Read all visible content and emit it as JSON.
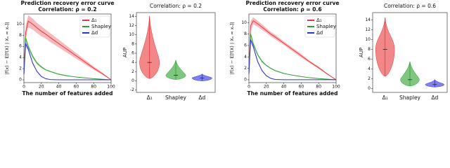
{
  "chart_data": [
    {
      "type": "line",
      "title": "Prediction recovery error curve",
      "subtitle": "Correlation: ρ = 0.2",
      "x_label": "The number of features added",
      "y_label": "|f(x) − E[f(X) | Xₛ = xₛ]|",
      "x": [
        0,
        2,
        5,
        10,
        15,
        20,
        25,
        30,
        40,
        50,
        60,
        70,
        80,
        90,
        100
      ],
      "series": [
        {
          "name": "Δ₁",
          "color": "#e8373b",
          "values": [
            1,
            8.5,
            10.5,
            10,
            9.3,
            8.7,
            8.2,
            7.6,
            6.5,
            5.4,
            4.3,
            3.2,
            2.1,
            1.1,
            0
          ],
          "errors": [
            0.3,
            1.2,
            1.1,
            1,
            0.9,
            0.9,
            0.8,
            0.8,
            0.7,
            0.6,
            0.5,
            0.4,
            0.3,
            0.2,
            0
          ]
        },
        {
          "name": "Shapley",
          "color": "#2ca02c",
          "values": [
            1,
            7.5,
            6,
            4.2,
            3,
            2.3,
            1.8,
            1.5,
            1,
            0.7,
            0.5,
            0.35,
            0.2,
            0.1,
            0
          ],
          "errors": [
            0.2,
            0.4,
            0.3,
            0.3,
            0.2,
            0.2,
            0.1,
            0.1,
            0.1,
            0.1,
            0,
            0,
            0,
            0,
            0
          ]
        },
        {
          "name": "Δd",
          "color": "#2d2de0",
          "values": [
            1,
            6.5,
            5.5,
            3,
            1.5,
            0.6,
            0.2,
            0.05,
            0,
            0,
            0,
            0,
            0,
            0,
            0
          ],
          "errors": [
            0.2,
            0.4,
            0.3,
            0.2,
            0.1,
            0.1,
            0,
            0,
            0,
            0,
            0,
            0,
            0,
            0,
            0
          ]
        }
      ],
      "xlim": [
        0,
        100
      ],
      "xticks": [
        0,
        20,
        40,
        60,
        80,
        100
      ],
      "ylim": [
        -0.5,
        11.8
      ],
      "yticks": [
        0,
        2,
        4,
        6,
        8,
        10
      ],
      "legend": "upper right"
    },
    {
      "type": "violin",
      "title": "Correlation: ρ = 0.2",
      "y_label": "AUP",
      "categories": [
        "Δ₁",
        "Shapley",
        "Δd"
      ],
      "colors": [
        "#e8373b",
        "#2ca02c",
        "#2d2de0"
      ],
      "min": [
        0.5,
        0.3,
        0
      ],
      "median": [
        4,
        1.2,
        0.6
      ],
      "max": [
        14,
        4.5,
        1.5
      ],
      "ylim": [
        -2.5,
        14.8
      ],
      "yticks": [
        -2,
        0,
        2,
        4,
        6,
        8,
        10,
        12,
        14
      ]
    },
    {
      "type": "line",
      "title": "Prediction recovery error curve",
      "subtitle": "Correlation: ρ = 0.6",
      "x_label": "The number of features added",
      "y_label": "|f(x) − E[f(X) | Xₛ = xₛ]|",
      "x": [
        0,
        2,
        5,
        10,
        15,
        20,
        25,
        30,
        40,
        50,
        60,
        70,
        80,
        90,
        100
      ],
      "series": [
        {
          "name": "Δ₁",
          "color": "#e8373b",
          "values": [
            1,
            9.5,
            10.3,
            9.8,
            9.2,
            8.6,
            8,
            7.5,
            6.4,
            5.3,
            4.2,
            3.1,
            2.1,
            1,
            0
          ],
          "errors": [
            0.3,
            0.8,
            0.6,
            0.5,
            0.5,
            0.4,
            0.4,
            0.4,
            0.3,
            0.3,
            0.3,
            0.2,
            0.2,
            0.1,
            0
          ]
        },
        {
          "name": "Shapley",
          "color": "#2ca02c",
          "values": [
            1,
            8,
            6.3,
            4.4,
            3.2,
            2.5,
            2,
            1.6,
            1.1,
            0.8,
            0.55,
            0.35,
            0.2,
            0.1,
            0
          ],
          "errors": [
            0.2,
            0.3,
            0.3,
            0.2,
            0.2,
            0.1,
            0.1,
            0.1,
            0.1,
            0,
            0,
            0,
            0,
            0,
            0
          ]
        },
        {
          "name": "Δd",
          "color": "#2d2de0",
          "values": [
            1,
            7,
            5.8,
            3.2,
            1.6,
            0.7,
            0.25,
            0.05,
            0,
            0,
            0,
            0,
            0,
            0,
            0
          ],
          "errors": [
            0.2,
            0.3,
            0.3,
            0.2,
            0.1,
            0.1,
            0,
            0,
            0,
            0,
            0,
            0,
            0,
            0,
            0
          ]
        }
      ],
      "xlim": [
        0,
        100
      ],
      "xticks": [
        0,
        20,
        40,
        60,
        80,
        100
      ],
      "ylim": [
        -0.5,
        11.5
      ],
      "yticks": [
        0,
        2,
        4,
        6,
        8,
        10
      ],
      "legend": "upper right"
    },
    {
      "type": "violin",
      "title": "Correlation: ρ = 0.6",
      "y_label": "AUP",
      "categories": [
        "Δ₁",
        "Shapley",
        "Δd"
      ],
      "colors": [
        "#e8373b",
        "#2ca02c",
        "#2d2de0"
      ],
      "min": [
        2.5,
        0.5,
        0.3
      ],
      "median": [
        8,
        1.8,
        0.8
      ],
      "max": [
        14.5,
        5.5,
        1.8
      ],
      "ylim": [
        -0.8,
        15.5
      ],
      "yticks": [
        0,
        2,
        4,
        6,
        8,
        10,
        12,
        14
      ]
    }
  ]
}
